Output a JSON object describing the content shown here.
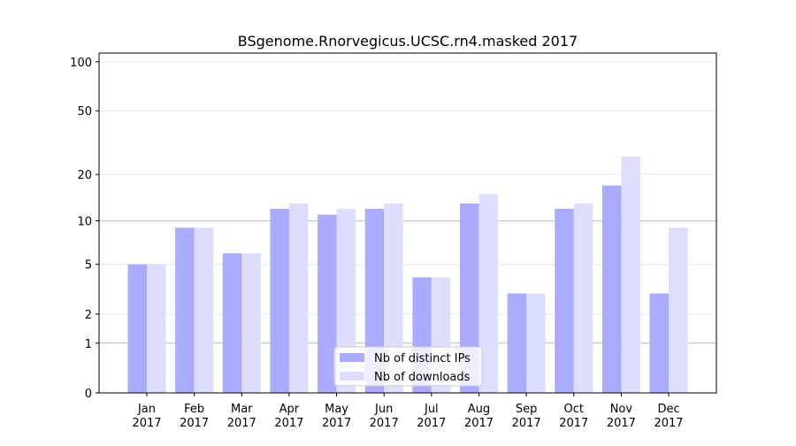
{
  "chart_data": {
    "type": "bar",
    "title": "BSgenome.Rnorvegicus.UCSC.rn4.masked 2017",
    "categories": [
      "Jan 2017",
      "Feb 2017",
      "Mar 2017",
      "Apr 2017",
      "May 2017",
      "Jun 2017",
      "Jul 2017",
      "Aug 2017",
      "Sep 2017",
      "Oct 2017",
      "Nov 2017",
      "Dec 2017"
    ],
    "series": [
      {
        "name": "Nb of distinct IPs",
        "color": "#aaaaff",
        "values": [
          5,
          9,
          6,
          12,
          11,
          12,
          4,
          13,
          3,
          12,
          17,
          3
        ]
      },
      {
        "name": "Nb of downloads",
        "color": "#ddddff",
        "values": [
          5,
          9,
          6,
          13,
          12,
          13,
          4,
          15,
          3,
          13,
          26,
          9
        ]
      }
    ],
    "yscale": "log1p",
    "ylim": [
      0,
      113
    ],
    "yticks": [
      0,
      1,
      2,
      5,
      10,
      20,
      50,
      100
    ],
    "grid": true,
    "legend": "lower center"
  }
}
